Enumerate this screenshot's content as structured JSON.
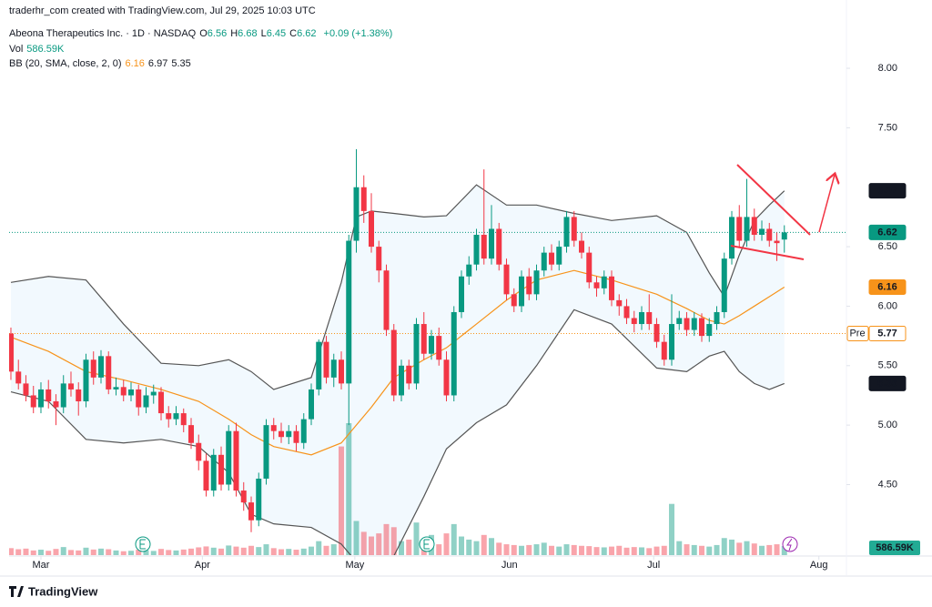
{
  "chart_data": {
    "type": "candlestick",
    "header": {
      "credit": "traderhr_com created with TradingView.com, Jul 29, 2025 10:03 UTC",
      "symbol": "Abeona Therapeutics Inc. · 1D · NASDAQ",
      "ohlc": [
        [
          "O",
          "6.56"
        ],
        [
          "H",
          "6.68"
        ],
        [
          "L",
          "6.45"
        ],
        [
          "C",
          "6.62"
        ]
      ],
      "change": "+0.09 (+1.38%)",
      "vol_name": "Vol",
      "vol_value": "586.59K",
      "bb_name": "BB (20, SMA, close, 2, 0)",
      "bb_values": [
        "6.16",
        "6.97",
        "5.35"
      ]
    },
    "footer": "TradingView",
    "up_color": "#089981",
    "down_color": "#f23645",
    "ylim": [
      3.907,
      8.574
    ],
    "yticks": [
      {
        "value": 8,
        "label": "8.00"
      },
      {
        "value": 7.5,
        "label": "7.50"
      },
      {
        "value": 6.5,
        "label": "6.50"
      },
      {
        "value": 6,
        "label": "6.00"
      },
      {
        "value": 5.5,
        "label": "5.50"
      },
      {
        "value": 5,
        "label": "5.00"
      },
      {
        "value": 4.5,
        "label": "4.50"
      }
    ],
    "xlim": [
      -0.24,
      111.27
    ],
    "xticks": [
      {
        "value": 4,
        "label": "Mar"
      },
      {
        "value": 25.5,
        "label": "Apr"
      },
      {
        "value": 45.8,
        "label": "May"
      },
      {
        "value": 66.4,
        "label": "Jun"
      },
      {
        "value": 85.6,
        "label": "Jul"
      },
      {
        "value": 107.6,
        "label": "Aug"
      }
    ],
    "candles": [
      [
        5.77,
        5.82,
        5.38,
        5.45
      ],
      [
        5.45,
        5.55,
        5.3,
        5.35
      ],
      [
        5.35,
        5.42,
        5.2,
        5.25
      ],
      [
        5.25,
        5.33,
        5.1,
        5.15
      ],
      [
        5.15,
        5.36,
        5.1,
        5.3
      ],
      [
        5.3,
        5.38,
        5.14,
        5.2
      ],
      [
        5.2,
        5.26,
        5,
        5.15
      ],
      [
        5.15,
        5.42,
        5.1,
        5.35
      ],
      [
        5.35,
        5.45,
        5.24,
        5.3
      ],
      [
        5.3,
        5.36,
        5.08,
        5.2
      ],
      [
        5.2,
        5.6,
        5.15,
        5.55
      ],
      [
        5.55,
        5.62,
        5.34,
        5.4
      ],
      [
        5.4,
        5.63,
        5.35,
        5.58
      ],
      [
        5.58,
        5.62,
        5.26,
        5.3
      ],
      [
        5.3,
        5.4,
        5.25,
        5.32
      ],
      [
        5.32,
        5.38,
        5.2,
        5.25
      ],
      [
        5.25,
        5.36,
        5.2,
        5.3
      ],
      [
        5.3,
        5.34,
        5.08,
        5.15
      ],
      [
        5.15,
        5.32,
        5.1,
        5.25
      ],
      [
        5.25,
        5.34,
        5.18,
        5.28
      ],
      [
        5.28,
        5.32,
        5.04,
        5.1
      ],
      [
        5.1,
        5.16,
        4.98,
        5.05
      ],
      [
        5.05,
        5.16,
        5,
        5.1
      ],
      [
        5.1,
        5.14,
        4.94,
        5
      ],
      [
        5,
        5.06,
        4.8,
        4.85
      ],
      [
        4.85,
        4.92,
        4.62,
        4.7
      ],
      [
        4.7,
        4.76,
        4.4,
        4.45
      ],
      [
        4.45,
        4.8,
        4.4,
        4.75
      ],
      [
        4.75,
        4.82,
        4.45,
        4.5
      ],
      [
        4.5,
        5,
        4.45,
        4.95
      ],
      [
        4.95,
        5.02,
        4.4,
        4.45
      ],
      [
        4.45,
        4.52,
        4.28,
        4.35
      ],
      [
        4.35,
        4.4,
        4.1,
        4.2
      ],
      [
        4.2,
        4.6,
        4.15,
        4.55
      ],
      [
        4.55,
        5.05,
        4.5,
        5
      ],
      [
        5,
        5.06,
        4.88,
        4.95
      ],
      [
        4.95,
        5.02,
        4.85,
        4.9
      ],
      [
        4.9,
        5,
        4.84,
        4.95
      ],
      [
        4.95,
        5,
        4.78,
        4.85
      ],
      [
        4.85,
        5.1,
        4.8,
        5.05
      ],
      [
        5.05,
        5.35,
        5,
        5.3
      ],
      [
        5.3,
        5.72,
        5.25,
        5.7
      ],
      [
        5.7,
        5.75,
        5.35,
        5.4
      ],
      [
        5.4,
        5.6,
        5.32,
        5.55
      ],
      [
        5.55,
        5.62,
        5.3,
        5.35
      ],
      [
        5.35,
        6.6,
        5,
        6.55
      ],
      [
        6.55,
        7.32,
        6.45,
        7
      ],
      [
        7,
        7.1,
        6.7,
        6.8
      ],
      [
        6.8,
        6.95,
        6.45,
        6.5
      ],
      [
        6.5,
        6.55,
        6.2,
        6.3
      ],
      [
        6.3,
        6.35,
        5.75,
        5.8
      ],
      [
        5.8,
        5.85,
        5.2,
        5.25
      ],
      [
        5.25,
        5.55,
        5.2,
        5.5
      ],
      [
        5.5,
        5.55,
        5.3,
        5.35
      ],
      [
        5.35,
        5.9,
        5.3,
        5.85
      ],
      [
        5.85,
        5.95,
        5.55,
        5.6
      ],
      [
        5.6,
        5.8,
        5.55,
        5.75
      ],
      [
        5.75,
        5.82,
        5.5,
        5.55
      ],
      [
        5.55,
        5.62,
        5.2,
        5.25
      ],
      [
        5.25,
        6,
        5.2,
        5.95
      ],
      [
        5.95,
        6.3,
        5.9,
        6.25
      ],
      [
        6.25,
        6.42,
        6.18,
        6.35
      ],
      [
        6.35,
        6.65,
        6.3,
        6.6
      ],
      [
        6.6,
        7.15,
        6.35,
        6.4
      ],
      [
        6.4,
        6.85,
        6.35,
        6.65
      ],
      [
        6.65,
        6.7,
        6.3,
        6.35
      ],
      [
        6.35,
        6.4,
        6.05,
        6.1
      ],
      [
        6.1,
        6.15,
        5.95,
        6
      ],
      [
        6,
        6.3,
        5.95,
        6.25
      ],
      [
        6.25,
        6.32,
        6.05,
        6.1
      ],
      [
        6.1,
        6.35,
        6.05,
        6.3
      ],
      [
        6.3,
        6.5,
        6.25,
        6.45
      ],
      [
        6.45,
        6.52,
        6.3,
        6.35
      ],
      [
        6.35,
        6.55,
        6.3,
        6.5
      ],
      [
        6.5,
        6.8,
        6.45,
        6.75
      ],
      [
        6.75,
        6.8,
        6.5,
        6.55
      ],
      [
        6.55,
        6.62,
        6.4,
        6.45
      ],
      [
        6.45,
        6.5,
        6.15,
        6.2
      ],
      [
        6.2,
        6.25,
        6.08,
        6.15
      ],
      [
        6.15,
        6.3,
        6.1,
        6.25
      ],
      [
        6.25,
        6.3,
        6,
        6.05
      ],
      [
        6.05,
        6.1,
        5.92,
        6
      ],
      [
        6,
        6.06,
        5.85,
        5.9
      ],
      [
        5.9,
        5.96,
        5.78,
        5.85
      ],
      [
        5.85,
        6,
        5.8,
        5.95
      ],
      [
        5.95,
        6.1,
        5.8,
        5.85
      ],
      [
        5.85,
        5.9,
        5.65,
        5.7
      ],
      [
        5.7,
        5.76,
        5.5,
        5.55
      ],
      [
        5.55,
        6.1,
        5.5,
        5.85
      ],
      [
        5.85,
        5.96,
        5.8,
        5.9
      ],
      [
        5.9,
        5.95,
        5.75,
        5.8
      ],
      [
        5.8,
        5.95,
        5.75,
        5.9
      ],
      [
        5.9,
        5.94,
        5.7,
        5.75
      ],
      [
        5.75,
        5.9,
        5.7,
        5.85
      ],
      [
        5.85,
        6,
        5.8,
        5.95
      ],
      [
        5.95,
        6.45,
        5.9,
        6.4
      ],
      [
        6.4,
        6.8,
        6.35,
        6.75
      ],
      [
        6.75,
        6.85,
        6.5,
        6.55
      ],
      [
        6.55,
        7.07,
        6.5,
        6.75
      ],
      [
        6.75,
        6.82,
        6.55,
        6.6
      ],
      [
        6.6,
        6.72,
        6.55,
        6.65
      ],
      [
        6.65,
        6.7,
        6.5,
        6.55
      ],
      [
        6.55,
        6.62,
        6.38,
        6.53
      ],
      [
        6.56,
        6.68,
        6.45,
        6.62
      ]
    ],
    "volume": [
      450000,
      380000,
      420000,
      300000,
      350000,
      280000,
      400000,
      520000,
      330000,
      300000,
      480000,
      360000,
      420000,
      380000,
      300000,
      250000,
      280000,
      350000,
      320000,
      270000,
      400000,
      330000,
      300000,
      360000,
      420000,
      500000,
      560000,
      480000,
      420000,
      620000,
      550000,
      480000,
      600000,
      520000,
      700000,
      450000,
      380000,
      400000,
      350000,
      420000,
      550000,
      900000,
      600000,
      700000,
      7000000,
      8500000,
      2200000,
      1500000,
      1200000,
      1400000,
      2000000,
      1800000,
      900000,
      1000000,
      2100000,
      900000,
      1300000,
      700000,
      1400000,
      2000000,
      1200000,
      1000000,
      900000,
      1300000,
      1100000,
      800000,
      700000,
      650000,
      600000,
      650000,
      700000,
      800000,
      600000,
      550000,
      700000,
      650000,
      600000,
      580000,
      520000,
      500000,
      550000,
      600000,
      480000,
      520000,
      500000,
      450000,
      550000,
      600000,
      3300000,
      900000,
      700000,
      650000,
      600000,
      550000,
      650000,
      1100000,
      1000000,
      800000,
      900000,
      750000,
      600000,
      650000,
      700000,
      586590
    ],
    "vol_label": "586.59K",
    "vol_color": "#22ab94",
    "bb": {
      "x": [
        0,
        5,
        10,
        15,
        20,
        25,
        29,
        32,
        35,
        40,
        44,
        46,
        48,
        51,
        55,
        58,
        62,
        66,
        70,
        75,
        80,
        86,
        90,
        93,
        95,
        97,
        99,
        101,
        103
      ],
      "upper": [
        6.2,
        6.25,
        6.22,
        5.85,
        5.52,
        5.5,
        5.55,
        5.45,
        5.3,
        5.4,
        6.2,
        6.75,
        6.8,
        6.78,
        6.75,
        6.76,
        7.02,
        6.85,
        6.85,
        6.78,
        6.72,
        6.76,
        6.62,
        6.28,
        6.08,
        6.43,
        6.72,
        6.85,
        6.97
      ],
      "basis": [
        5.74,
        5.62,
        5.45,
        5.38,
        5.3,
        5.2,
        5.05,
        4.92,
        4.82,
        4.75,
        4.85,
        5,
        5.15,
        5.4,
        5.55,
        5.65,
        5.85,
        6.05,
        6.22,
        6.3,
        6.22,
        6.1,
        5.98,
        5.88,
        5.85,
        5.92,
        6,
        6.08,
        6.16
      ],
      "lower": [
        5.28,
        5.2,
        4.88,
        4.85,
        4.88,
        4.82,
        4.6,
        4.25,
        4.17,
        4.14,
        4,
        3.85,
        3.7,
        3.9,
        4.4,
        4.8,
        5.02,
        5.17,
        5.5,
        5.97,
        5.85,
        5.48,
        5.45,
        5.58,
        5.62,
        5.45,
        5.35,
        5.3,
        5.35
      ],
      "band_color": "#555555",
      "basis_color": "#f7931a"
    },
    "price_labels": [
      {
        "value": 6.97,
        "label": "6.97",
        "color": "#131722"
      },
      {
        "value": 6.62,
        "label": "6.62",
        "color": "#089981",
        "dotted": true
      },
      {
        "value": 6.16,
        "label": "6.16",
        "color": "#f7931a"
      },
      {
        "value": 5.77,
        "label": "5.77",
        "tag": "Pre",
        "color": "#f7931a",
        "dotted": true,
        "outline": true
      },
      {
        "value": 5.35,
        "label": "5.35",
        "color": "#131722"
      }
    ]
  }
}
